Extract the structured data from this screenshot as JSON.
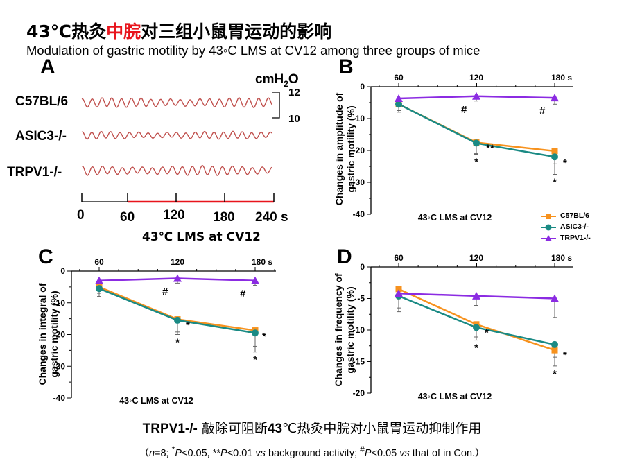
{
  "title": {
    "cn_pre": "43℃热灸",
    "cn_highlight": "中脘",
    "cn_post": "对三组小鼠胃运动的影响",
    "en": "Modulation of gastric motility by 43◦C LMS at CV12 among three groups of mice"
  },
  "colors": {
    "highlight": "#e8141c",
    "c57": "#f7921e",
    "asic3": "#1a8a84",
    "trpv1": "#8b2be2",
    "trace": "#c0504d"
  },
  "panel_a": {
    "letter": "A",
    "unit": "cmH",
    "unit_sub": "2",
    "unit_post": "O",
    "scale_top": "12",
    "scale_bottom": "10",
    "strains": [
      "C57BL/6",
      "ASIC3-/-",
      "TRPV1-/-"
    ],
    "time_ticks": [
      "0",
      "60",
      "120",
      "180",
      "240 s"
    ],
    "time_caption": "43℃ LMS at CV12"
  },
  "legend": [
    "C57BL/6",
    "ASIC3-/-",
    "TRPV1-/-"
  ],
  "chart_data": [
    {
      "type": "line",
      "panel": "B",
      "x": [
        60,
        120,
        180
      ],
      "x_tick_labels": [
        "60",
        "120",
        "180 s"
      ],
      "ylabel": "Changes in amplitude of gastric motility (%)",
      "xlabel": "43◦C LMS at CV12",
      "ylim": [
        -40,
        0
      ],
      "yticks": [
        0,
        -10,
        -20,
        -30,
        -40
      ],
      "series": [
        {
          "name": "C57BL/6",
          "values": [
            -5.5,
            -17.5,
            -20.2
          ],
          "err": [
            2.0,
            3.5,
            4.0
          ]
        },
        {
          "name": "ASIC3-/-",
          "values": [
            -5.5,
            -17.7,
            -22.0
          ],
          "err": [
            2.5,
            3.5,
            5.5
          ]
        },
        {
          "name": "TRPV1-/-",
          "values": [
            -3.7,
            -3.0,
            -3.5
          ],
          "err": [
            1.0,
            1.5,
            2.0
          ]
        }
      ],
      "annotations": [
        {
          "x": 120,
          "label": "#"
        },
        {
          "x": 180,
          "label": "#"
        },
        {
          "x": 120,
          "label": "**"
        },
        {
          "x": 120,
          "label": "*"
        },
        {
          "x": 180,
          "label": "*"
        },
        {
          "x": 180,
          "label": "*"
        }
      ]
    },
    {
      "type": "line",
      "panel": "C",
      "x": [
        60,
        120,
        180
      ],
      "x_tick_labels": [
        "60",
        "120",
        "180 s"
      ],
      "ylabel": "Changes in integral of gastric motility (%)",
      "xlabel": "43◦C LMS at CV12",
      "ylim": [
        -40,
        0
      ],
      "yticks": [
        0,
        -10,
        -20,
        -30,
        -40
      ],
      "series": [
        {
          "name": "C57BL/6",
          "values": [
            -5.0,
            -15.2,
            -18.7
          ],
          "err": [
            2.0,
            4.0,
            5.0
          ]
        },
        {
          "name": "ASIC3-/-",
          "values": [
            -5.5,
            -15.5,
            -19.5
          ],
          "err": [
            2.5,
            4.5,
            6.0
          ]
        },
        {
          "name": "TRPV1-/-",
          "values": [
            -3.0,
            -2.3,
            -3.0
          ],
          "err": [
            1.0,
            1.5,
            1.5
          ]
        }
      ],
      "annotations": [
        {
          "x": 120,
          "label": "#"
        },
        {
          "x": 180,
          "label": "#"
        },
        {
          "x": 120,
          "label": "*"
        },
        {
          "x": 120,
          "label": "*"
        },
        {
          "x": 180,
          "label": "*"
        },
        {
          "x": 180,
          "label": "*"
        }
      ]
    },
    {
      "type": "line",
      "panel": "D",
      "x": [
        60,
        120,
        180
      ],
      "x_tick_labels": [
        "60",
        "120",
        "180 s"
      ],
      "ylabel": "Changes in frequency of gastric motility (%)",
      "xlabel": "43◦C LMS at CV12",
      "ylim": [
        -20,
        0
      ],
      "yticks": [
        0,
        -5,
        -10,
        -15,
        -20
      ],
      "series": [
        {
          "name": "C57BL/6",
          "values": [
            -3.5,
            -9.1,
            -13.2
          ],
          "err": [
            3.0,
            2.0,
            2.5
          ]
        },
        {
          "name": "ASIC3-/-",
          "values": [
            -4.6,
            -9.6,
            -12.3
          ],
          "err": [
            2.5,
            2.0,
            2.0
          ]
        },
        {
          "name": "TRPV1-/-",
          "values": [
            -4.2,
            -4.6,
            -5.0
          ],
          "err": [
            1.0,
            1.5,
            3.0
          ]
        }
      ],
      "annotations": [
        {
          "x": 120,
          "label": "*"
        },
        {
          "x": 120,
          "label": "*"
        },
        {
          "x": 180,
          "label": "*"
        },
        {
          "x": 180,
          "label": "*"
        }
      ]
    }
  ],
  "bottom": {
    "bold_part": "TRPV1-/-",
    "cn_part": " 敲除可阻断",
    "bold_43": "43",
    "cn_rest": "℃热灸中脘对小鼠胃运动抑制作用"
  },
  "footnote": {
    "open": "（",
    "n": "n",
    "n_rest": "=8; ",
    "sup1": "*",
    "p1": "P",
    "p1_rest": "<0.05, **",
    "p2": "P",
    "p2_rest": "<0.01 ",
    "vs1": "vs",
    "bg": " background activity; ",
    "sup2": "#",
    "p3": "P",
    "p3_rest": "<0.05 ",
    "vs2": "vs",
    "tail": " that of in Con.）"
  }
}
